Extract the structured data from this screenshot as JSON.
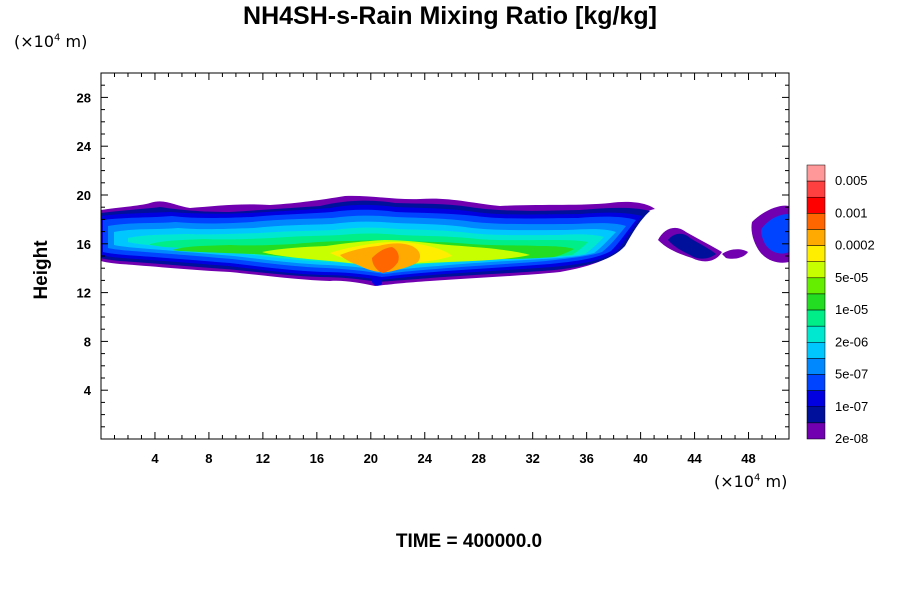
{
  "chart_data": {
    "type": "heatmap",
    "title": "NH4SH-s-Rain Mixing Ratio [kg/kg]",
    "ylabel": "Height",
    "xlabel": "",
    "x_unit": "(×10",
    "x_unit_exp": "4",
    "x_unit_suffix": " m)",
    "y_unit": "(×10",
    "y_unit_exp": "4",
    "y_unit_suffix": " m)",
    "xlim": [
      0,
      51
    ],
    "ylim": [
      0,
      30
    ],
    "x_ticks": [
      "4",
      "8",
      "12",
      "16",
      "20",
      "24",
      "28",
      "32",
      "36",
      "40",
      "44",
      "48"
    ],
    "y_ticks": [
      "4",
      "8",
      "12",
      "16",
      "20",
      "24",
      "28"
    ],
    "time_label": "TIME = 400000.0",
    "colorbar": {
      "labels": [
        "0.005",
        "0.001",
        "0.0002",
        "5e-05",
        "1e-05",
        "2e-06",
        "5e-07",
        "1e-07",
        "2e-08"
      ],
      "colors": [
        "#ff9999",
        "#ff4040",
        "#ff0000",
        "#ff6600",
        "#ffaa00",
        "#ffee00",
        "#c8ff00",
        "#66ee00",
        "#22dd22",
        "#00ee88",
        "#00e8d0",
        "#00c8ff",
        "#0088ff",
        "#0044ff",
        "#0000e0",
        "#00109a",
        "#7000b0"
      ]
    }
  }
}
